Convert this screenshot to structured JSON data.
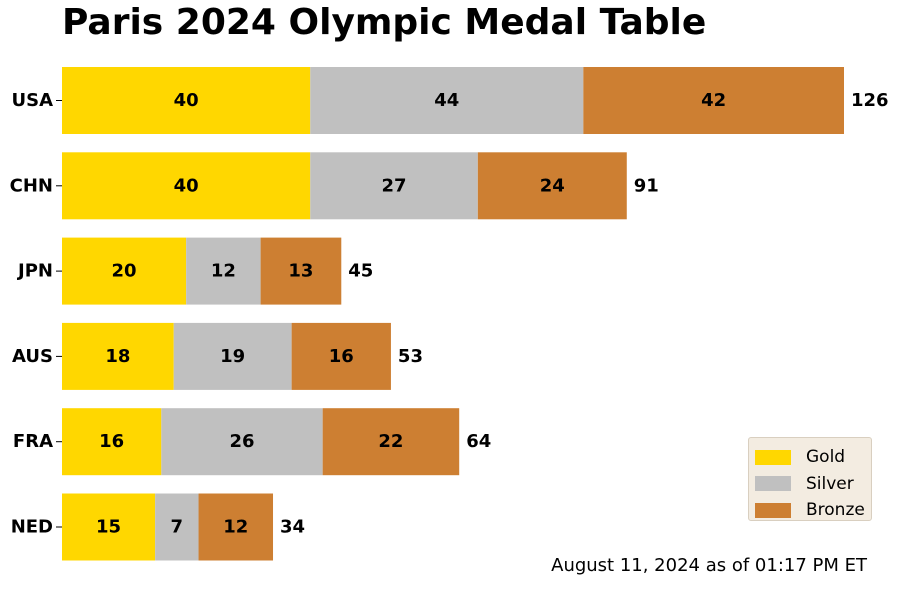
{
  "chart_data": {
    "type": "bar",
    "orientation": "horizontal",
    "stacked": true,
    "title": "Paris 2024 Olympic Medal Table",
    "footnote": "August 11, 2024 as of 01:17 PM ET",
    "categories": [
      "USA",
      "CHN",
      "JPN",
      "AUS",
      "FRA",
      "NED"
    ],
    "series": [
      {
        "name": "Gold",
        "color": "#FFD700",
        "values": [
          40,
          40,
          20,
          18,
          16,
          15
        ]
      },
      {
        "name": "Silver",
        "color": "#C0C0C0",
        "values": [
          44,
          27,
          12,
          19,
          26,
          7
        ]
      },
      {
        "name": "Bronze",
        "color": "#CD7F32",
        "values": [
          42,
          24,
          13,
          16,
          22,
          12
        ]
      }
    ],
    "totals": [
      126,
      91,
      45,
      53,
      64,
      34
    ],
    "xlim": [
      0,
      126
    ],
    "grid": false,
    "legend_position": "bottom-right"
  }
}
